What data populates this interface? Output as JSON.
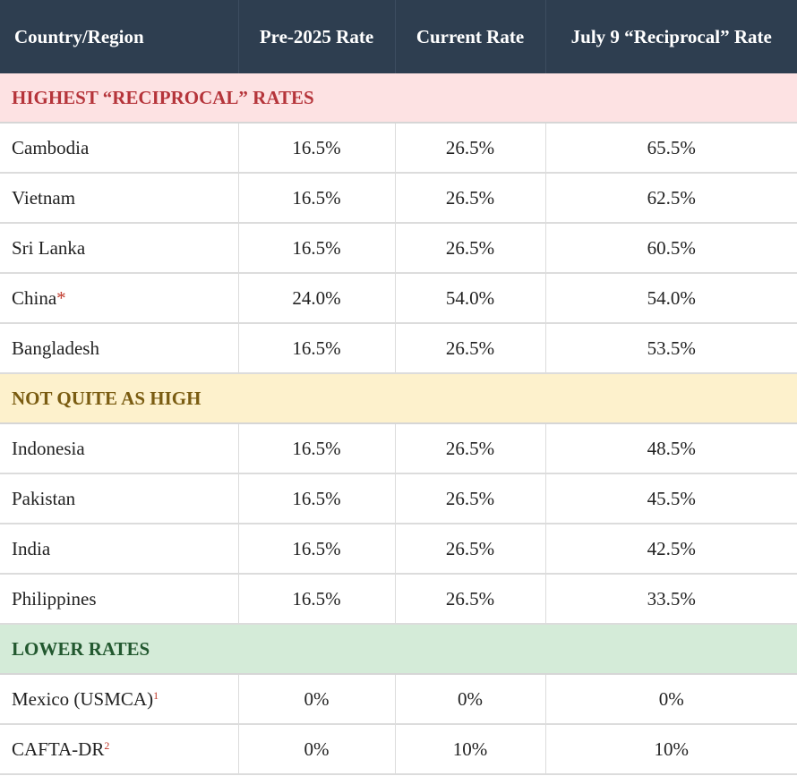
{
  "header": {
    "col_country": "Country/Region",
    "col_pre2025": "Pre-2025 Rate",
    "col_current": "Current Rate",
    "col_july9": "July 9 “Reciprocal” Rate"
  },
  "colors": {
    "header_bg": "#2e3e50",
    "highest_bg": "#fde2e3",
    "highest_text": "#b5343a",
    "middle_bg": "#fdf1cc",
    "middle_text": "#7a5c11",
    "lower_bg": "#d4ebd8",
    "lower_text": "#22582f",
    "footnote_marker": "#c0392b"
  },
  "sections": [
    {
      "title": "HIGHEST “RECIPROCAL” RATES",
      "rows": [
        {
          "country": "Cambodia",
          "marker": "",
          "pre2025": "16.5%",
          "current": "26.5%",
          "july9": "65.5%"
        },
        {
          "country": "Vietnam",
          "marker": "",
          "pre2025": "16.5%",
          "current": "26.5%",
          "july9": "62.5%"
        },
        {
          "country": "Sri Lanka",
          "marker": "",
          "pre2025": "16.5%",
          "current": "26.5%",
          "july9": "60.5%"
        },
        {
          "country": "China",
          "marker": "*",
          "pre2025": "24.0%",
          "current": "54.0%",
          "july9": "54.0%"
        },
        {
          "country": "Bangladesh",
          "marker": "",
          "pre2025": "16.5%",
          "current": "26.5%",
          "july9": "53.5%"
        }
      ]
    },
    {
      "title": "NOT QUITE AS HIGH",
      "rows": [
        {
          "country": "Indonesia",
          "marker": "",
          "pre2025": "16.5%",
          "current": "26.5%",
          "july9": "48.5%"
        },
        {
          "country": "Pakistan",
          "marker": "",
          "pre2025": "16.5%",
          "current": "26.5%",
          "july9": "45.5%"
        },
        {
          "country": "India",
          "marker": "",
          "pre2025": "16.5%",
          "current": "26.5%",
          "july9": "42.5%"
        },
        {
          "country": "Philippines",
          "marker": "",
          "pre2025": "16.5%",
          "current": "26.5%",
          "july9": "33.5%"
        }
      ]
    },
    {
      "title": "LOWER RATES",
      "rows": [
        {
          "country": "Mexico (USMCA)",
          "marker": "1",
          "pre2025": "0%",
          "current": "0%",
          "july9": "0%"
        },
        {
          "country": "CAFTA-DR",
          "marker": "2",
          "pre2025": "0%",
          "current": "10%",
          "july9": "10%"
        }
      ]
    }
  ]
}
